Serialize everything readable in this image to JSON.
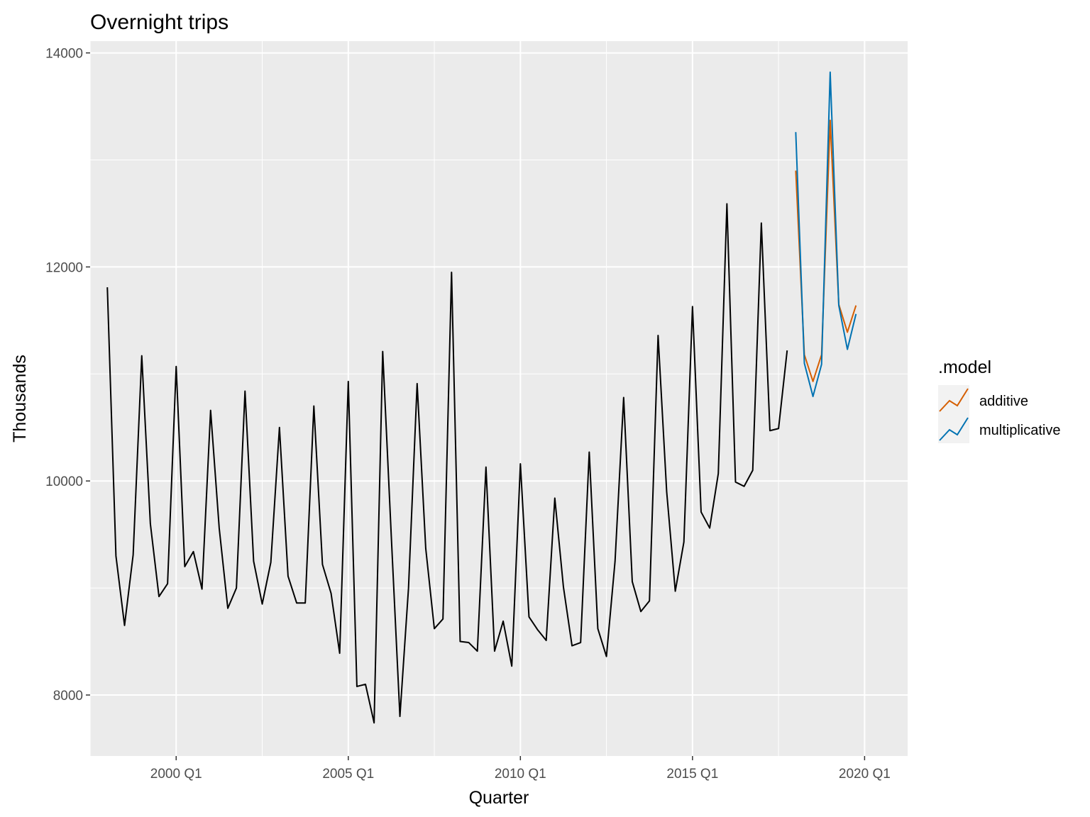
{
  "chart_data": {
    "type": "line",
    "title": "Overnight trips",
    "xlabel": "Quarter",
    "ylabel": "Thousands",
    "xlim": [
      1997.5,
      2021.25
    ],
    "ylim": [
      7430,
      14110
    ],
    "x_ticks": [
      2000,
      2005,
      2010,
      2015,
      2020
    ],
    "x_tick_labels": [
      "2000 Q1",
      "2005 Q1",
      "2010 Q1",
      "2015 Q1",
      "2020 Q1"
    ],
    "y_ticks": [
      8000,
      10000,
      12000,
      14000
    ],
    "y_tick_labels": [
      "8000",
      "10000",
      "12000",
      "14000"
    ],
    "grid": true,
    "panel_background": "#ebebeb",
    "history": {
      "start": [
        1998,
        1
      ],
      "color": "#000000",
      "values": [
        11810,
        9300,
        8650,
        9310,
        11170,
        9600,
        8920,
        9040,
        11070,
        9200,
        9340,
        8990,
        10660,
        9560,
        8810,
        9000,
        10840,
        9250,
        8850,
        9240,
        10500,
        9110,
        8860,
        8860,
        10700,
        9220,
        8950,
        8390,
        10930,
        8080,
        8100,
        7740,
        11210,
        9480,
        7800,
        9000,
        10910,
        9370,
        8620,
        8710,
        11950,
        8500,
        8490,
        8410,
        10130,
        8410,
        8690,
        8270,
        10160,
        8730,
        8610,
        8510,
        9840,
        9010,
        8460,
        8490,
        10270,
        8620,
        8360,
        9250,
        10780,
        9060,
        8780,
        8880,
        11360,
        9900,
        8970,
        9430,
        11630,
        9710,
        9560,
        10070,
        12590,
        9990,
        9950,
        10100,
        12410,
        10470,
        10490,
        11220
      ]
    },
    "legend_title": ".model",
    "legend_position": "right",
    "series": [
      {
        "name": "additive",
        "color": "#d55e00",
        "start": [
          2018,
          1
        ],
        "values": [
          12900,
          11180,
          10930,
          11180,
          13370,
          11650,
          11390,
          11640
        ]
      },
      {
        "name": "multiplicative",
        "color": "#0072b2",
        "start": [
          2018,
          1
        ],
        "values": [
          13260,
          11100,
          10790,
          11090,
          13820,
          11640,
          11230,
          11560
        ]
      }
    ]
  }
}
